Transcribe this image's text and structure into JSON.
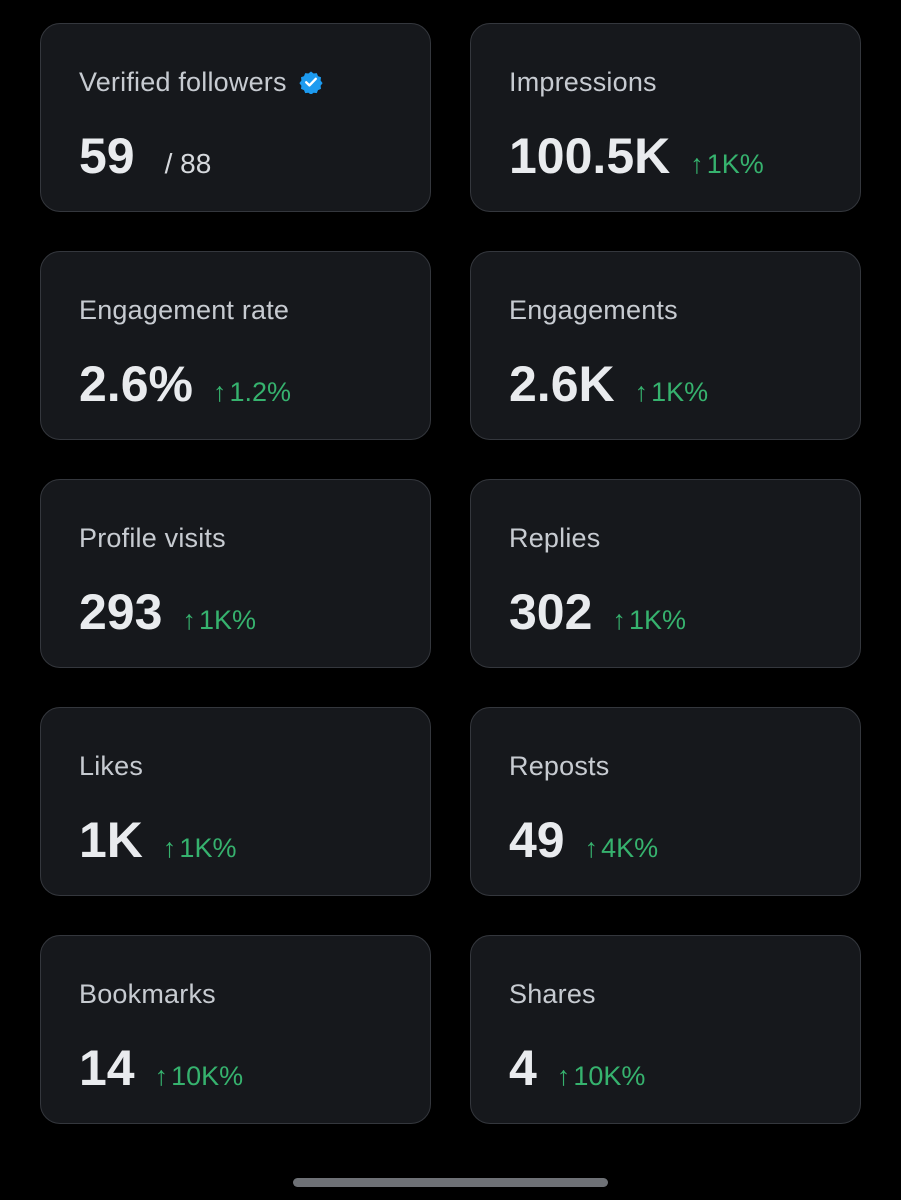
{
  "colors": {
    "background": "#000000",
    "card": "#16181c",
    "card_border": "#34373d",
    "label": "#c7cbd1",
    "value": "#e9ebee",
    "positive_change": "#36b26e",
    "verified_badge": "#1d9bf0"
  },
  "cards": [
    {
      "label": "Verified followers",
      "value": "59",
      "suffix": "/ 88",
      "change": "",
      "icon": "verified-badge-icon"
    },
    {
      "label": "Impressions",
      "value": "100.5K",
      "suffix": "",
      "change": "1K%",
      "icon": "up-arrow-icon"
    },
    {
      "label": "Engagement rate",
      "value": "2.6%",
      "suffix": "",
      "change": "1.2%",
      "icon": "up-arrow-icon"
    },
    {
      "label": "Engagements",
      "value": "2.6K",
      "suffix": "",
      "change": "1K%",
      "icon": "up-arrow-icon"
    },
    {
      "label": "Profile visits",
      "value": "293",
      "suffix": "",
      "change": "1K%",
      "icon": "up-arrow-icon"
    },
    {
      "label": "Replies",
      "value": "302",
      "suffix": "",
      "change": "1K%",
      "icon": "up-arrow-icon"
    },
    {
      "label": "Likes",
      "value": "1K",
      "suffix": "",
      "change": "1K%",
      "icon": "up-arrow-icon"
    },
    {
      "label": "Reposts",
      "value": "49",
      "suffix": "",
      "change": "4K%",
      "icon": "up-arrow-icon"
    },
    {
      "label": "Bookmarks",
      "value": "14",
      "suffix": "",
      "change": "10K%",
      "icon": "up-arrow-icon"
    },
    {
      "label": "Shares",
      "value": "4",
      "suffix": "",
      "change": "10K%",
      "icon": "up-arrow-icon"
    }
  ]
}
